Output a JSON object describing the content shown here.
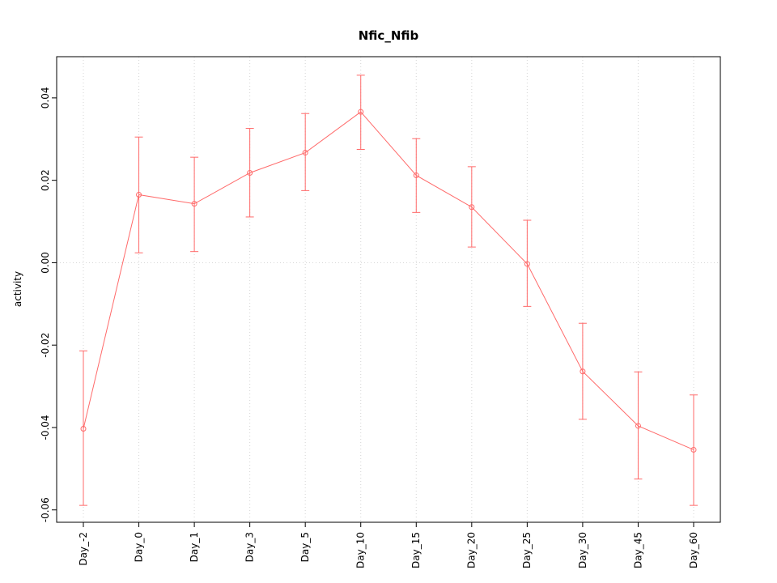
{
  "chart_data": {
    "type": "line",
    "title": "Nfic_Nfib",
    "xlabel": "",
    "ylabel": "activity",
    "categories": [
      "Day_-2",
      "Day_0",
      "Day_1",
      "Day_3",
      "Day_5",
      "Day_10",
      "Day_15",
      "Day_20",
      "Day_25",
      "Day_30",
      "Day_45",
      "Day_60"
    ],
    "values": [
      -0.0403,
      0.0165,
      0.0143,
      0.0218,
      0.0267,
      0.0366,
      0.0212,
      0.0135,
      -0.0003,
      -0.0264,
      -0.0396,
      -0.0454
    ],
    "error_low": [
      -0.0589,
      0.0024,
      0.0027,
      0.0111,
      0.0175,
      0.0275,
      0.0122,
      0.0038,
      -0.0106,
      -0.038,
      -0.0525,
      -0.0589
    ],
    "error_high": [
      -0.0214,
      0.0305,
      0.0256,
      0.0326,
      0.0362,
      0.0455,
      0.0301,
      0.0233,
      0.0103,
      -0.0147,
      -0.0265,
      -0.0321
    ],
    "ylim": [
      -0.063,
      0.05
    ],
    "yticks": [
      -0.06,
      -0.04,
      -0.02,
      0,
      0.02,
      0.04
    ],
    "legend": "none",
    "grid": "dotted vertical line at each category, dotted horizontal line at zero",
    "series_color": "#ff6a6a",
    "grid_color": "#d4d4d4",
    "axis_color": "#000000",
    "point_style": "open-circle",
    "error_bar_style": "caps"
  }
}
